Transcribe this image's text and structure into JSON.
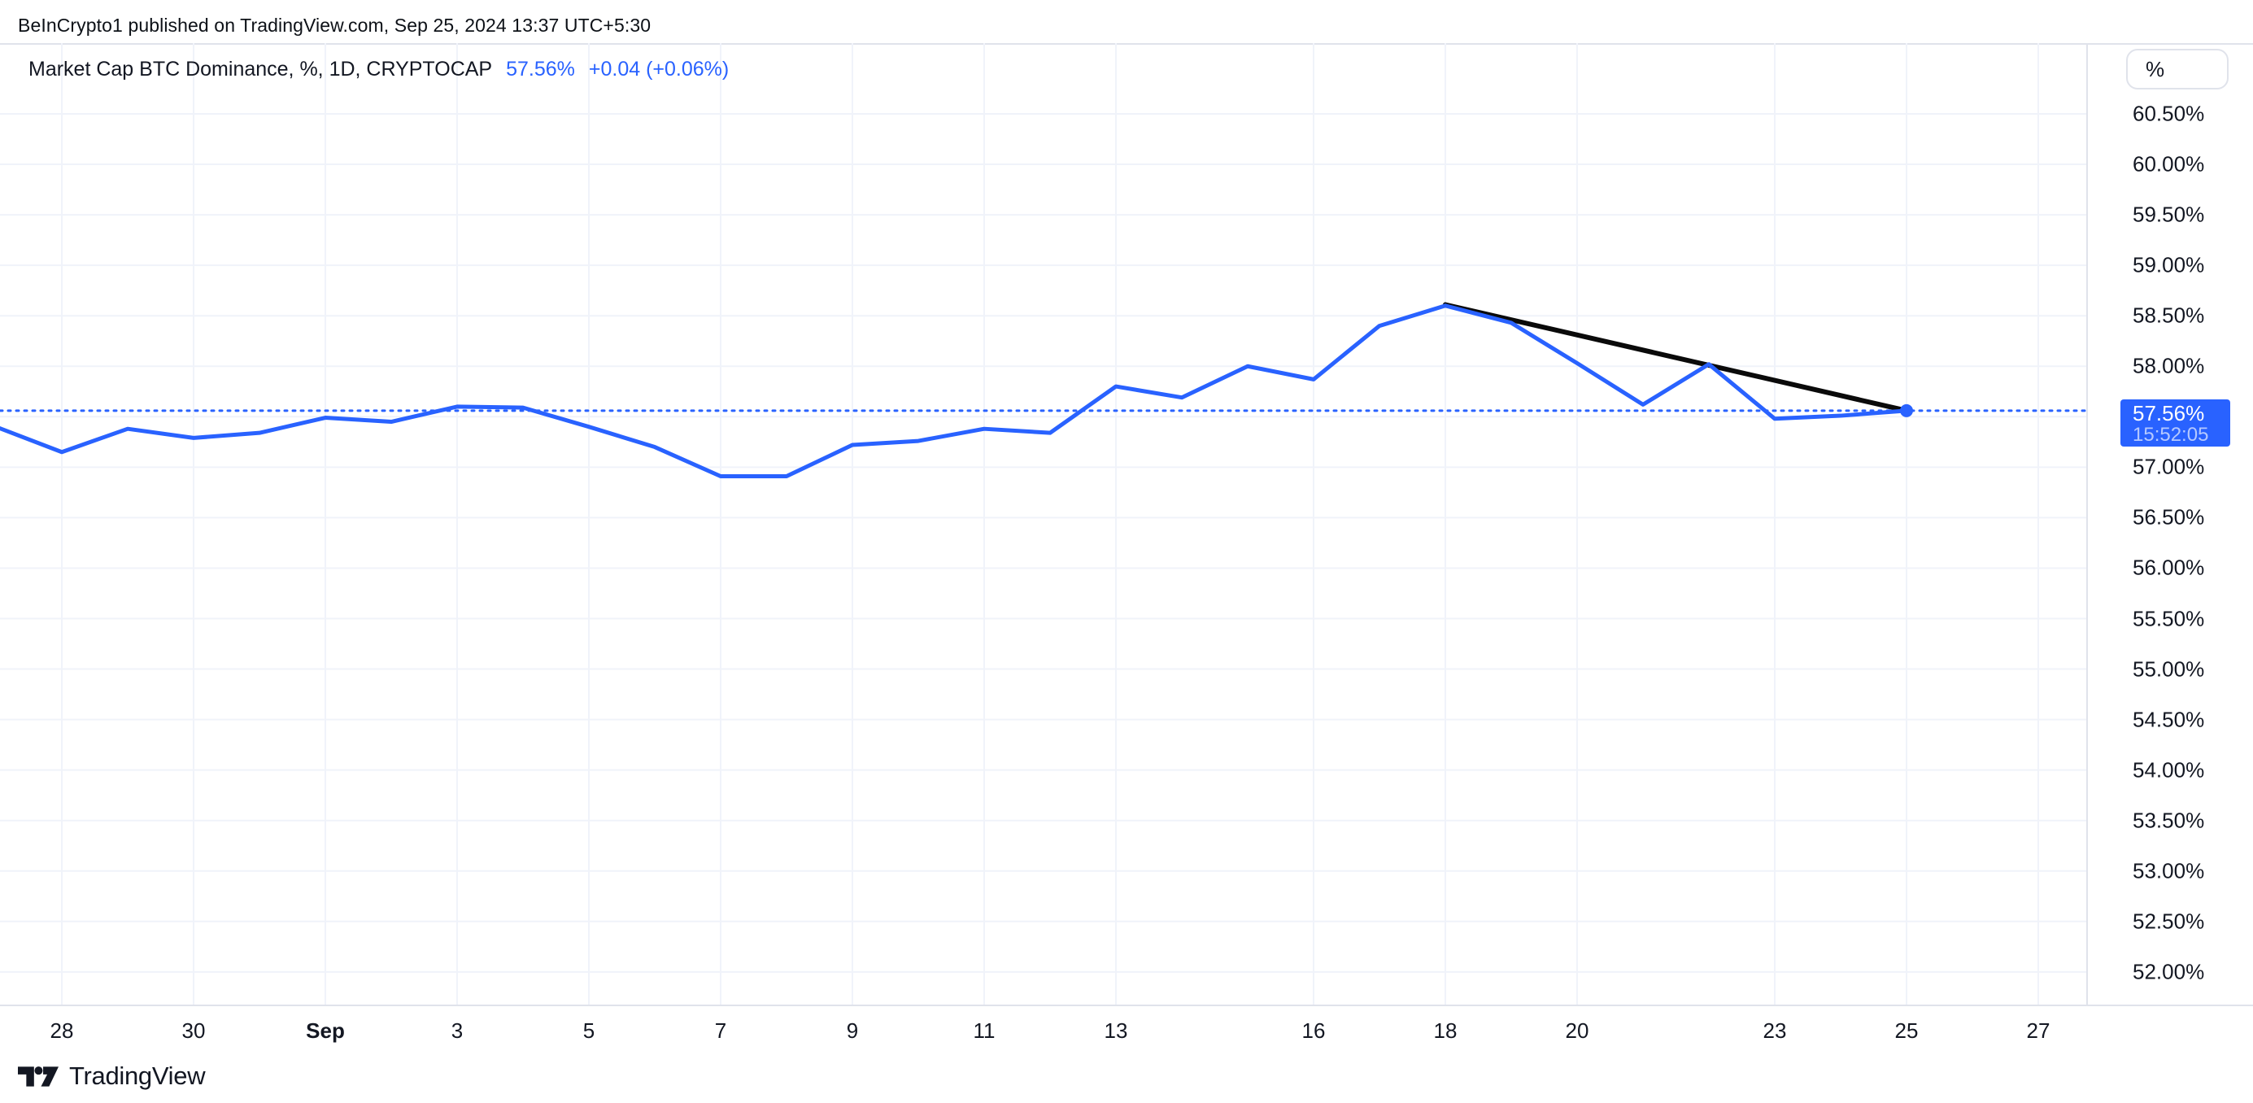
{
  "header": {
    "attribution": "BeInCrypto1 published on TradingView.com, Sep 25, 2024 13:37 UTC+5:30"
  },
  "legend": {
    "title": "Market Cap BTC Dominance, %, 1D, CRYPTOCAP",
    "value": "57.56%",
    "change": "+0.04 (+0.06%)"
  },
  "price_scale": {
    "unit_button": "%",
    "labels": [
      {
        "text": "60.50%",
        "value": 60.5
      },
      {
        "text": "60.00%",
        "value": 60.0
      },
      {
        "text": "59.50%",
        "value": 59.5
      },
      {
        "text": "59.00%",
        "value": 59.0
      },
      {
        "text": "58.50%",
        "value": 58.5
      },
      {
        "text": "58.00%",
        "value": 58.0
      },
      {
        "text": "57.00%",
        "value": 57.0
      },
      {
        "text": "56.50%",
        "value": 56.5
      },
      {
        "text": "56.00%",
        "value": 56.0
      },
      {
        "text": "55.50%",
        "value": 55.5
      },
      {
        "text": "55.00%",
        "value": 55.0
      },
      {
        "text": "54.50%",
        "value": 54.5
      },
      {
        "text": "54.00%",
        "value": 54.0
      },
      {
        "text": "53.50%",
        "value": 53.5
      },
      {
        "text": "53.00%",
        "value": 53.0
      },
      {
        "text": "52.50%",
        "value": 52.5
      },
      {
        "text": "52.00%",
        "value": 52.0
      }
    ],
    "current": {
      "price": "57.56%",
      "time": "15:52:05"
    }
  },
  "time_scale": {
    "labels": [
      {
        "text": "28",
        "day_index": 1,
        "bold": false
      },
      {
        "text": "30",
        "day_index": 3,
        "bold": false
      },
      {
        "text": "Sep",
        "day_index": 5,
        "bold": true
      },
      {
        "text": "3",
        "day_index": 7,
        "bold": false
      },
      {
        "text": "5",
        "day_index": 9,
        "bold": false
      },
      {
        "text": "7",
        "day_index": 11,
        "bold": false
      },
      {
        "text": "9",
        "day_index": 13,
        "bold": false
      },
      {
        "text": "11",
        "day_index": 15,
        "bold": false
      },
      {
        "text": "13",
        "day_index": 17,
        "bold": false
      },
      {
        "text": "16",
        "day_index": 20,
        "bold": false
      },
      {
        "text": "18",
        "day_index": 22,
        "bold": false
      },
      {
        "text": "20",
        "day_index": 24,
        "bold": false
      },
      {
        "text": "23",
        "day_index": 27,
        "bold": false
      },
      {
        "text": "25",
        "day_index": 29,
        "bold": false
      },
      {
        "text": "27",
        "day_index": 31,
        "bold": false
      }
    ]
  },
  "footer": {
    "brand": "TradingView"
  },
  "colors": {
    "accent": "#2962FF",
    "text": "#131722",
    "grid": "#F0F3FA",
    "border": "#E0E3EB",
    "trendline": "#0A0A0A",
    "price_tag_bg": "#2962FF",
    "price_tag_time": "rgba(255,255,255,0.65)"
  },
  "chart_data": {
    "type": "line",
    "title": "Market Cap BTC Dominance, %, 1D, CRYPTOCAP",
    "ylabel_unit": "%",
    "interval": "1D",
    "current_value": 57.56,
    "change_abs": 0.04,
    "change_pct": 0.06,
    "ylim": [
      51.7,
      61.2
    ],
    "grid": true,
    "x": [
      "Aug 27",
      "Aug 28",
      "Aug 29",
      "Aug 30",
      "Aug 31",
      "Sep 1",
      "Sep 2",
      "Sep 3",
      "Sep 4",
      "Sep 5",
      "Sep 6",
      "Sep 7",
      "Sep 8",
      "Sep 9",
      "Sep 10",
      "Sep 11",
      "Sep 12",
      "Sep 13",
      "Sep 14",
      "Sep 15",
      "Sep 16",
      "Sep 17",
      "Sep 18",
      "Sep 19",
      "Sep 20",
      "Sep 21",
      "Sep 22",
      "Sep 23",
      "Sep 24",
      "Sep 25"
    ],
    "values": [
      57.4,
      57.15,
      57.38,
      57.29,
      57.34,
      57.49,
      57.45,
      57.6,
      57.59,
      57.4,
      57.2,
      56.91,
      56.91,
      57.22,
      57.26,
      57.38,
      57.34,
      57.8,
      57.69,
      58.0,
      57.87,
      58.4,
      58.6,
      58.43,
      58.03,
      57.62,
      58.02,
      57.48,
      57.51,
      57.56
    ],
    "y_gridlines": [
      60.5,
      60.0,
      59.5,
      59.0,
      58.5,
      58.0,
      57.5,
      57.0,
      56.5,
      56.0,
      55.5,
      55.0,
      54.5,
      54.0,
      53.5,
      53.0,
      52.5,
      52.0
    ],
    "trendline": {
      "from": {
        "date": "Sep 18",
        "index": 22,
        "value": 58.61
      },
      "to": {
        "date": "Sep 25",
        "index": 29,
        "value": 57.56
      }
    },
    "current_price_line": 57.56
  }
}
